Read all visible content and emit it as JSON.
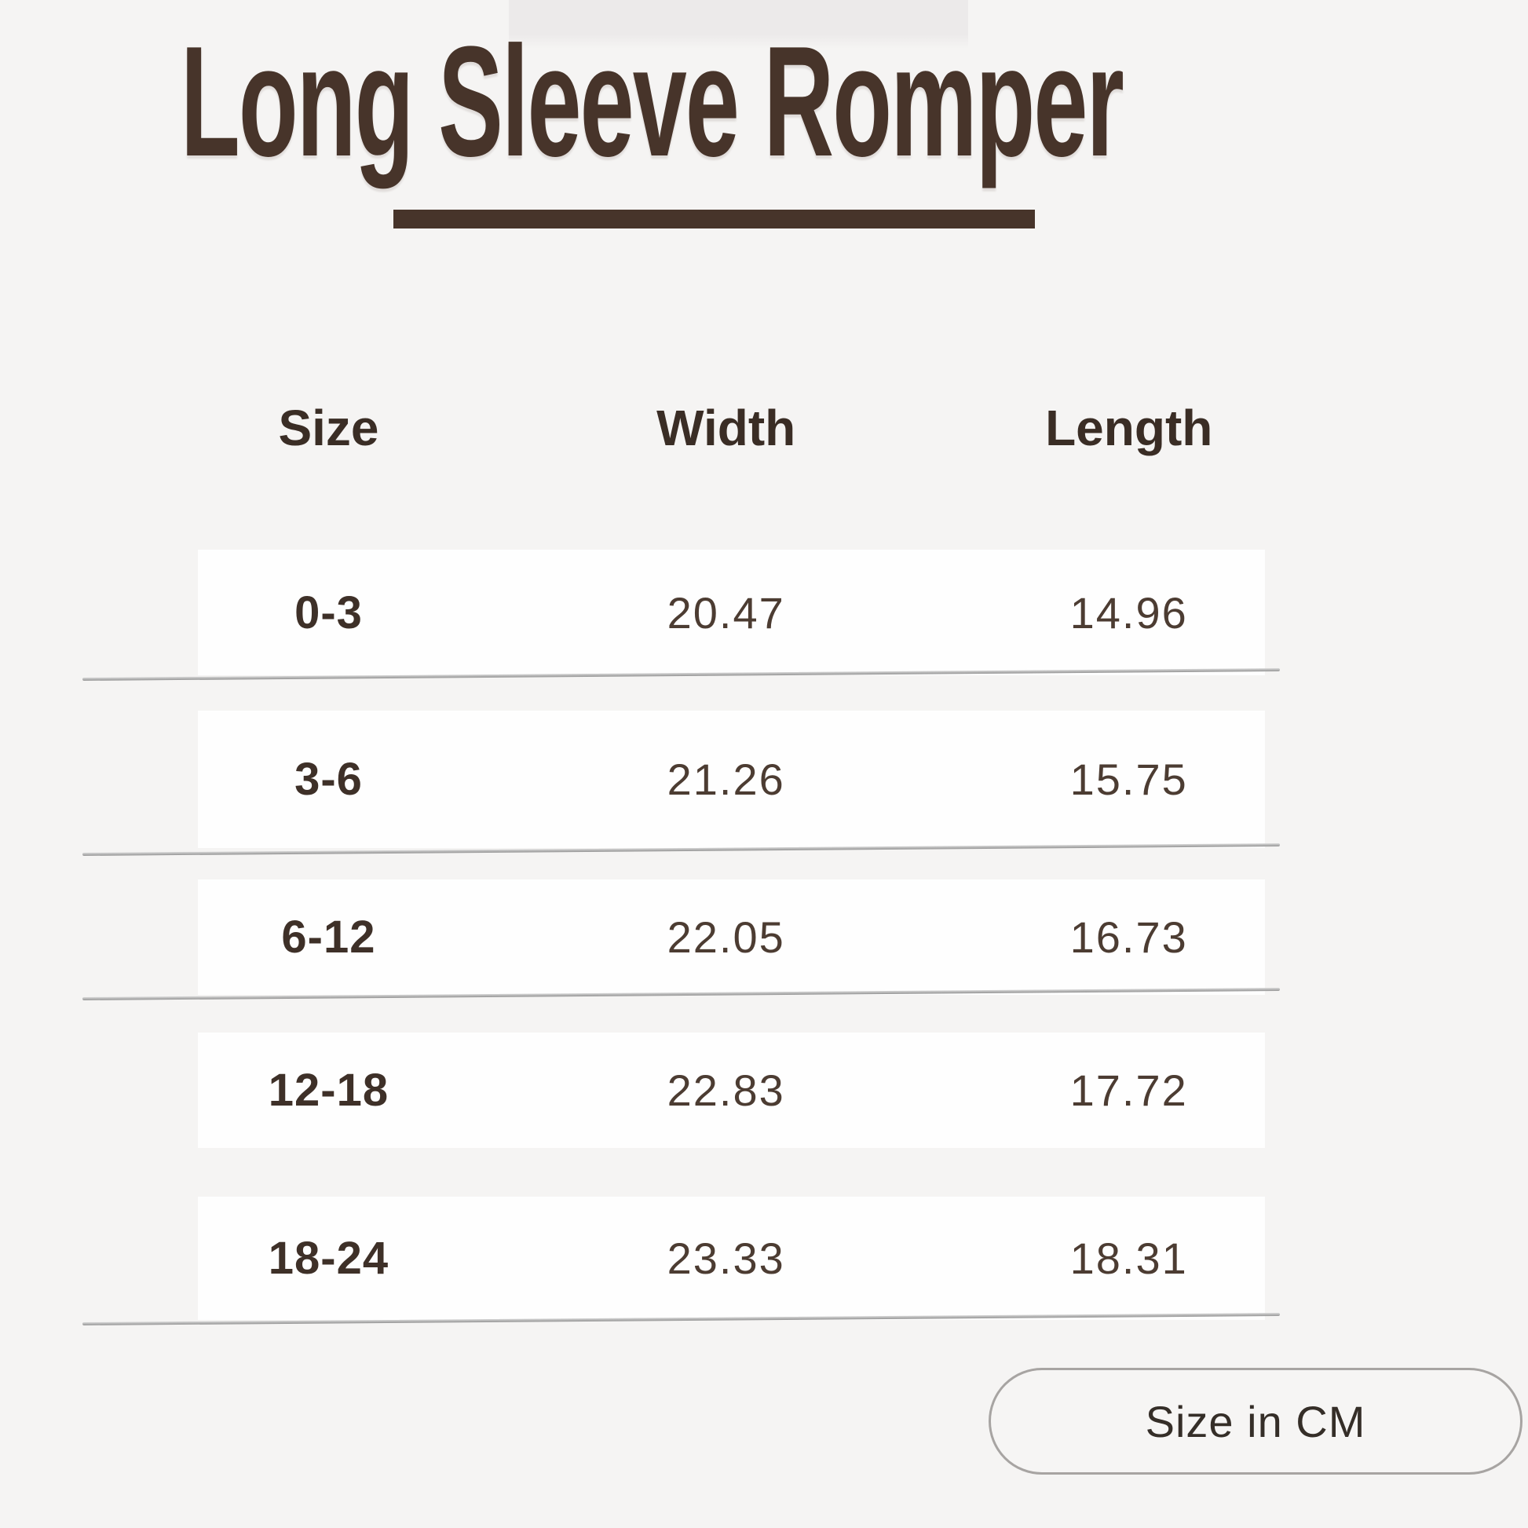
{
  "title": "Long Sleeve Romper",
  "chart_data": {
    "type": "table",
    "title": "Long Sleeve Romper",
    "columns": [
      "Size",
      "Width",
      "Length"
    ],
    "rows": [
      {
        "size": "0-3",
        "width": "20.47",
        "length": "14.96"
      },
      {
        "size": "3-6",
        "width": "21.26",
        "length": "15.75"
      },
      {
        "size": "6-12",
        "width": "22.05",
        "length": "16.73"
      },
      {
        "size": "12-18",
        "width": "22.83",
        "length": "17.72"
      },
      {
        "size": "18-24",
        "width": "23.33",
        "length": "18.31"
      }
    ],
    "unit_note": "Size in CM"
  },
  "badge": {
    "label": "Size in CM"
  },
  "colors": {
    "background": "#f5f4f3",
    "accent_brown": "#47342a",
    "row_background": "#fefefe",
    "divider_gray": "#9a9a9a",
    "pill_border": "#a7a4a2",
    "text_dark": "#3e3028"
  }
}
